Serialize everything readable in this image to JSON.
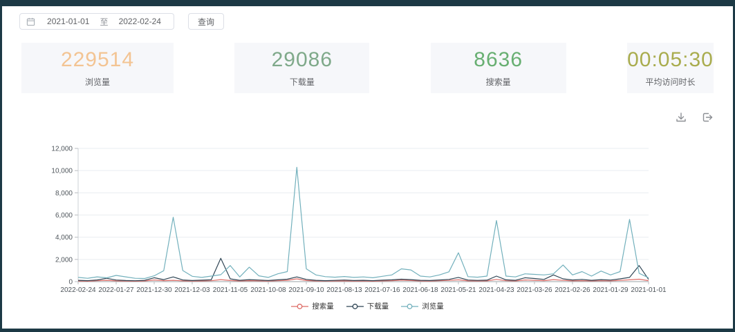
{
  "toolbar": {
    "date_start": "2021-01-01",
    "date_separator": "至",
    "date_end": "2022-02-24",
    "query_label": "查询"
  },
  "stats": [
    {
      "value": "229514",
      "label": "浏览量",
      "color": "#f3c493"
    },
    {
      "value": "29086",
      "label": "下载量",
      "color": "#7fa98a"
    },
    {
      "value": "8636",
      "label": "搜索量",
      "color": "#68af72"
    },
    {
      "value": "00:05:30",
      "label": "平均访问时长",
      "color": "#a9ac4e"
    }
  ],
  "chart_data": {
    "type": "line",
    "title": "",
    "xlabel": "",
    "ylabel": "",
    "ylim": [
      0,
      12000
    ],
    "y_ticks": [
      0,
      2000,
      4000,
      6000,
      8000,
      10000,
      12000
    ],
    "grid": true,
    "legend_position": "bottom",
    "x_label_interval": 4,
    "x_labels": [
      "2022-02-24",
      "2022-01-27",
      "2021-12-30",
      "2021-12-03",
      "2021-11-05",
      "2021-10-08",
      "2021-09-10",
      "2021-08-13",
      "2021-07-16",
      "2021-06-18",
      "2021-05-21",
      "2021-04-23",
      "2021-03-26",
      "2021-02-26",
      "2021-01-29",
      "2021-01-01"
    ],
    "series": [
      {
        "name": "搜索量",
        "color": "#dd6b66",
        "values": [
          60,
          40,
          80,
          120,
          70,
          50,
          40,
          60,
          150,
          90,
          120,
          70,
          50,
          60,
          80,
          180,
          100,
          60,
          90,
          70,
          50,
          80,
          120,
          250,
          100,
          60,
          50,
          60,
          70,
          50,
          60,
          40,
          70,
          90,
          130,
          100,
          60,
          50,
          80,
          110,
          160,
          70,
          60,
          70,
          200,
          80,
          60,
          150,
          120,
          90,
          180,
          110,
          70,
          90,
          60,
          80,
          70,
          110,
          160,
          220,
          90
        ]
      },
      {
        "name": "下载量",
        "color": "#2f4554",
        "values": [
          120,
          90,
          150,
          300,
          140,
          100,
          80,
          120,
          350,
          180,
          420,
          150,
          100,
          130,
          160,
          2100,
          250,
          120,
          180,
          140,
          100,
          160,
          220,
          420,
          200,
          120,
          90,
          110,
          140,
          100,
          120,
          90,
          130,
          160,
          220,
          180,
          120,
          100,
          150,
          200,
          380,
          140,
          110,
          130,
          500,
          160,
          120,
          350,
          280,
          200,
          600,
          250,
          150,
          200,
          120,
          180,
          140,
          250,
          380,
          1450,
          200
        ]
      },
      {
        "name": "浏览量",
        "color": "#72b0bc",
        "values": [
          380,
          300,
          430,
          340,
          560,
          430,
          300,
          280,
          520,
          980,
          5800,
          1000,
          480,
          380,
          500,
          620,
          1450,
          420,
          1300,
          520,
          380,
          700,
          900,
          10300,
          1150,
          600,
          450,
          400,
          460,
          380,
          420,
          350,
          480,
          600,
          1150,
          1050,
          500,
          420,
          600,
          880,
          2600,
          450,
          400,
          500,
          5500,
          500,
          420,
          700,
          650,
          600,
          700,
          1500,
          600,
          900,
          500,
          950,
          600,
          900,
          5600,
          750,
          350
        ]
      }
    ]
  }
}
